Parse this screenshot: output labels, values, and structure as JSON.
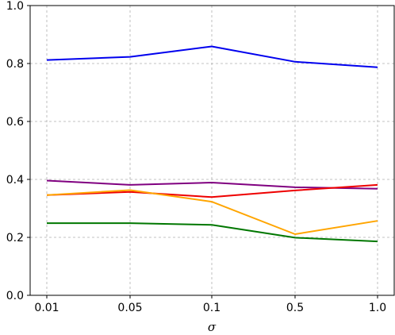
{
  "chart_data": {
    "type": "line",
    "title": "",
    "xlabel": "σ",
    "ylabel": "",
    "categories": [
      "0.01",
      "0.05",
      "0.1",
      "0.5",
      "1.0"
    ],
    "ylim": [
      0.0,
      1.0
    ],
    "yticks": [
      "0.0",
      "0.2",
      "0.4",
      "0.6",
      "0.8",
      "1.0"
    ],
    "grid": true,
    "legend": "none",
    "series": [
      {
        "color": "#0000ee",
        "values": [
          0.812,
          0.823,
          0.859,
          0.806,
          0.787
        ]
      },
      {
        "color": "#800080",
        "values": [
          0.396,
          0.381,
          0.389,
          0.373,
          0.368
        ]
      },
      {
        "color": "#ee0000",
        "values": [
          0.346,
          0.357,
          0.339,
          0.362,
          0.381
        ]
      },
      {
        "color": "#ffa500",
        "values": [
          0.346,
          0.363,
          0.323,
          0.211,
          0.257
        ]
      },
      {
        "color": "#007700",
        "values": [
          0.249,
          0.249,
          0.243,
          0.199,
          0.186
        ]
      }
    ]
  }
}
